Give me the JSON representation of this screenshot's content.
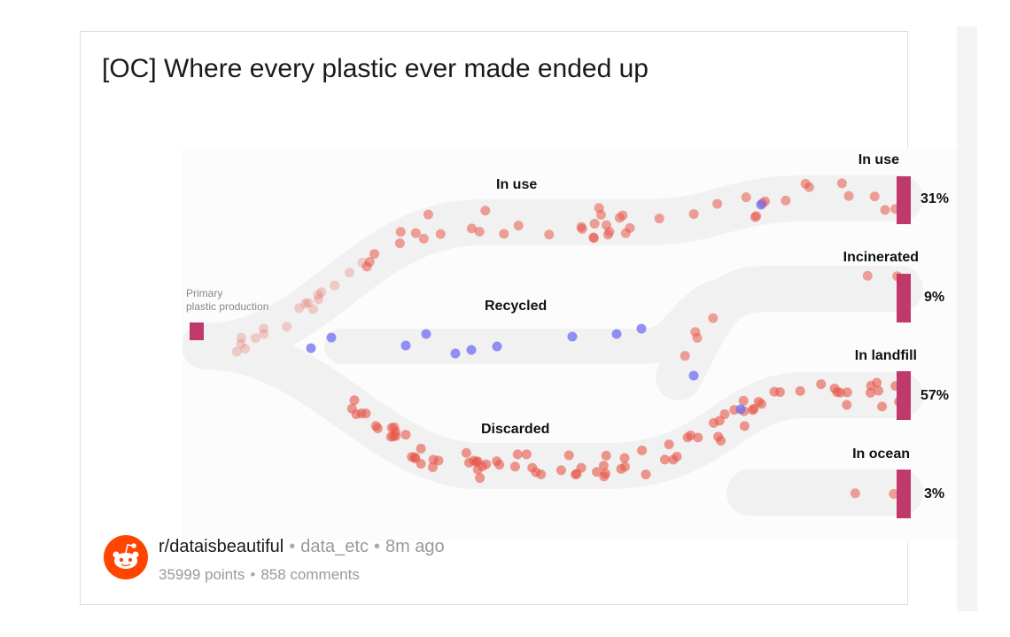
{
  "post": {
    "title": "[OC] Where every plastic ever made ended up",
    "subreddit": "r/dataisbeautiful",
    "author": "data_etc",
    "time": "8m ago",
    "points": "35999 points",
    "comments": "858 comments",
    "separator": "•"
  },
  "figure": {
    "source_label_1": "Primary",
    "source_label_2": "plastic production",
    "flows": {
      "in_use": "In use",
      "recycled": "Recycled",
      "discarded": "Discarded"
    },
    "outcomes": [
      {
        "label": "In use",
        "percent": "31%"
      },
      {
        "label": "Incinerated",
        "percent": "9%"
      },
      {
        "label": "In landfill",
        "percent": "57%"
      },
      {
        "label": "In ocean",
        "percent": "3%"
      }
    ],
    "colors": {
      "bar": "#c0396b",
      "plastic_dot": "#e8574a",
      "recycled_dot": "#6e6ef0",
      "band": "#f1f1f1",
      "brand": "#ff4500"
    }
  }
}
